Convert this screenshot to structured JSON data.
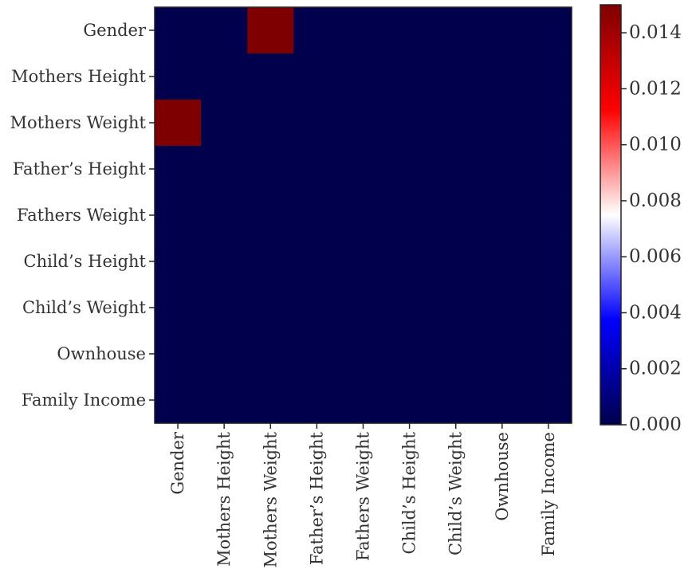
{
  "chart_data": {
    "type": "heatmap",
    "title": "",
    "xlabel": "",
    "ylabel": "",
    "row_labels": [
      "Gender",
      "Mothers Height",
      "Mothers Weight",
      "Father’s Height",
      "Fathers Weight",
      "Child’s Height",
      "Child’s Weight",
      "Ownhouse",
      "Family Income"
    ],
    "col_labels": [
      "Gender",
      "Mothers Height",
      "Mothers Weight",
      "Father’s Height",
      "Fathers Weight",
      "Child’s Height",
      "Child’s Weight",
      "Ownhouse",
      "Family Income"
    ],
    "values": [
      [
        0,
        0,
        0.015,
        0,
        0,
        0,
        0,
        0,
        0
      ],
      [
        0,
        0,
        0,
        0,
        0,
        0,
        0,
        0,
        0
      ],
      [
        0.015,
        0,
        0,
        0,
        0,
        0,
        0,
        0,
        0
      ],
      [
        0,
        0,
        0,
        0,
        0,
        0,
        0,
        0,
        0
      ],
      [
        0,
        0,
        0,
        0,
        0,
        0,
        0,
        0,
        0
      ],
      [
        0,
        0,
        0,
        0,
        0,
        0,
        0,
        0,
        0
      ],
      [
        0,
        0,
        0,
        0,
        0,
        0,
        0,
        0,
        0
      ],
      [
        0,
        0,
        0,
        0,
        0,
        0,
        0,
        0,
        0
      ],
      [
        0,
        0,
        0,
        0,
        0,
        0,
        0,
        0,
        0
      ]
    ],
    "colorbar": {
      "min": 0.0,
      "max": 0.015,
      "ticks": [
        0.0,
        0.002,
        0.004,
        0.006,
        0.008,
        0.01,
        0.012,
        0.014
      ],
      "tick_labels": [
        "0.000",
        "0.002",
        "0.004",
        "0.006",
        "0.008",
        "0.010",
        "0.012",
        "0.014"
      ],
      "colormap": "seismic"
    },
    "colors": {
      "low": "#00004c",
      "mid_low": "#0000ff",
      "mid": "#ffffff",
      "mid_high": "#ff0000",
      "high": "#7f0000"
    }
  }
}
